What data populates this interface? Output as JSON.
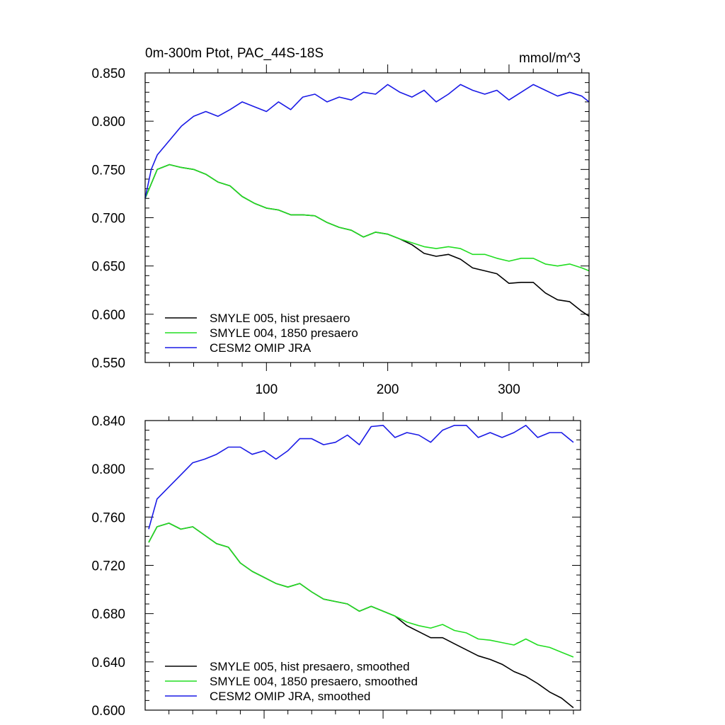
{
  "chart_data": [
    {
      "type": "line",
      "title": "0m-300m Ptot, PAC_44S-18S",
      "units_label": "mmol/m^3",
      "xlim": [
        0,
        366
      ],
      "ylim": [
        0.55,
        0.85
      ],
      "xticks": [
        100,
        200,
        300
      ],
      "xtick_labels": [
        "100",
        "200",
        "300"
      ],
      "yticks": [
        0.55,
        0.6,
        0.65,
        0.7,
        0.75,
        0.8,
        0.85
      ],
      "ytick_labels": [
        "0.550",
        "0.600",
        "0.650",
        "0.700",
        "0.750",
        "0.800",
        "0.850"
      ],
      "grid": false,
      "legend_position": "bottom-left",
      "series": [
        {
          "name": "SMYLE 005, hist presaero",
          "color": "#000000",
          "x": [
            0,
            10,
            20,
            30,
            40,
            50,
            60,
            70,
            80,
            90,
            100,
            110,
            120,
            130,
            140,
            150,
            160,
            170,
            180,
            190,
            200,
            210,
            220,
            230,
            240,
            250,
            260,
            270,
            280,
            290,
            300,
            310,
            320,
            330,
            340,
            350,
            360,
            366
          ],
          "y": [
            0.72,
            0.75,
            0.755,
            0.752,
            0.75,
            0.745,
            0.737,
            0.733,
            0.722,
            0.715,
            0.71,
            0.708,
            0.703,
            0.703,
            0.702,
            0.695,
            0.69,
            0.687,
            0.68,
            0.685,
            0.683,
            0.678,
            0.672,
            0.663,
            0.66,
            0.662,
            0.657,
            0.648,
            0.645,
            0.642,
            0.632,
            0.633,
            0.633,
            0.622,
            0.615,
            0.613,
            0.603,
            0.598
          ]
        },
        {
          "name": "SMYLE 004, 1850 presaero",
          "color": "#22dd22",
          "x": [
            0,
            10,
            20,
            30,
            40,
            50,
            60,
            70,
            80,
            90,
            100,
            110,
            120,
            130,
            140,
            150,
            160,
            170,
            180,
            190,
            200,
            210,
            220,
            230,
            240,
            250,
            260,
            270,
            280,
            290,
            300,
            310,
            320,
            330,
            340,
            350,
            360,
            366
          ],
          "y": [
            0.72,
            0.75,
            0.755,
            0.752,
            0.75,
            0.745,
            0.737,
            0.733,
            0.722,
            0.715,
            0.71,
            0.708,
            0.703,
            0.703,
            0.702,
            0.695,
            0.69,
            0.687,
            0.68,
            0.685,
            0.683,
            0.678,
            0.674,
            0.67,
            0.668,
            0.67,
            0.668,
            0.662,
            0.662,
            0.658,
            0.655,
            0.658,
            0.658,
            0.652,
            0.65,
            0.652,
            0.648,
            0.645
          ]
        },
        {
          "name": "CESM2 OMIP JRA",
          "color": "#1a1ae6",
          "x": [
            0,
            5,
            10,
            20,
            30,
            40,
            50,
            60,
            70,
            80,
            90,
            100,
            110,
            120,
            130,
            140,
            150,
            160,
            170,
            180,
            190,
            200,
            210,
            220,
            230,
            240,
            250,
            260,
            270,
            280,
            290,
            300,
            310,
            320,
            330,
            340,
            350,
            360,
            366
          ],
          "y": [
            0.72,
            0.75,
            0.765,
            0.78,
            0.795,
            0.805,
            0.81,
            0.805,
            0.812,
            0.82,
            0.815,
            0.81,
            0.82,
            0.812,
            0.825,
            0.828,
            0.82,
            0.825,
            0.822,
            0.83,
            0.828,
            0.838,
            0.83,
            0.825,
            0.832,
            0.82,
            0.828,
            0.838,
            0.832,
            0.828,
            0.832,
            0.822,
            0.83,
            0.838,
            0.832,
            0.826,
            0.83,
            0.826,
            0.82
          ]
        }
      ]
    },
    {
      "type": "line",
      "xlim": [
        0,
        366
      ],
      "ylim": [
        0.6,
        0.84
      ],
      "xticks": [
        100,
        200,
        300
      ],
      "xtick_labels": [
        "",
        "",
        ""
      ],
      "yticks": [
        0.6,
        0.64,
        0.68,
        0.72,
        0.76,
        0.8,
        0.84
      ],
      "ytick_labels": [
        "0.600",
        "0.640",
        "0.680",
        "0.720",
        "0.760",
        "0.800",
        "0.840"
      ],
      "grid": false,
      "legend_position": "bottom-left",
      "series": [
        {
          "name": "SMYLE 005, hist presaero, smoothed",
          "color": "#000000",
          "x": [
            3,
            10,
            20,
            30,
            40,
            50,
            60,
            70,
            80,
            90,
            100,
            110,
            120,
            130,
            140,
            150,
            160,
            170,
            180,
            190,
            200,
            210,
            220,
            230,
            240,
            250,
            260,
            270,
            280,
            290,
            300,
            310,
            320,
            330,
            340,
            350,
            360
          ],
          "y": [
            0.739,
            0.752,
            0.755,
            0.75,
            0.752,
            0.745,
            0.738,
            0.735,
            0.722,
            0.715,
            0.71,
            0.705,
            0.702,
            0.705,
            0.698,
            0.692,
            0.69,
            0.688,
            0.682,
            0.686,
            0.682,
            0.678,
            0.67,
            0.665,
            0.66,
            0.66,
            0.655,
            0.65,
            0.645,
            0.642,
            0.638,
            0.632,
            0.628,
            0.622,
            0.615,
            0.61,
            0.602
          ]
        },
        {
          "name": "SMYLE 004, 1850 presaero, smoothed",
          "color": "#22dd22",
          "x": [
            3,
            10,
            20,
            30,
            40,
            50,
            60,
            70,
            80,
            90,
            100,
            110,
            120,
            130,
            140,
            150,
            160,
            170,
            180,
            190,
            200,
            210,
            220,
            230,
            240,
            250,
            260,
            270,
            280,
            290,
            300,
            310,
            320,
            330,
            340,
            350,
            360
          ],
          "y": [
            0.739,
            0.752,
            0.755,
            0.75,
            0.752,
            0.745,
            0.738,
            0.735,
            0.722,
            0.715,
            0.71,
            0.705,
            0.702,
            0.705,
            0.698,
            0.692,
            0.69,
            0.688,
            0.682,
            0.686,
            0.682,
            0.678,
            0.673,
            0.67,
            0.668,
            0.671,
            0.666,
            0.664,
            0.659,
            0.658,
            0.656,
            0.654,
            0.659,
            0.654,
            0.652,
            0.648,
            0.644
          ]
        },
        {
          "name": "CESM2 OMIP JRA, smoothed",
          "color": "#1a1ae6",
          "x": [
            3,
            10,
            20,
            30,
            40,
            50,
            60,
            70,
            80,
            90,
            100,
            110,
            120,
            130,
            140,
            150,
            160,
            170,
            180,
            190,
            200,
            210,
            220,
            230,
            240,
            250,
            260,
            270,
            280,
            290,
            300,
            310,
            320,
            330,
            340,
            350,
            360
          ],
          "y": [
            0.75,
            0.775,
            0.785,
            0.795,
            0.805,
            0.808,
            0.812,
            0.818,
            0.818,
            0.812,
            0.815,
            0.808,
            0.815,
            0.825,
            0.825,
            0.82,
            0.822,
            0.828,
            0.82,
            0.835,
            0.836,
            0.826,
            0.83,
            0.828,
            0.822,
            0.832,
            0.836,
            0.836,
            0.826,
            0.83,
            0.826,
            0.83,
            0.836,
            0.826,
            0.83,
            0.83,
            0.822
          ]
        }
      ]
    }
  ]
}
